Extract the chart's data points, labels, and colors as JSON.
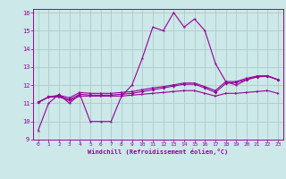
{
  "bg_color": "#cce8e8",
  "grid_color": "#aacccc",
  "line_color": "#990099",
  "xlim": [
    -0.5,
    23.5
  ],
  "ylim": [
    9,
    16.2
  ],
  "yticks": [
    9,
    10,
    11,
    12,
    13,
    14,
    15,
    16
  ],
  "xticks": [
    0,
    1,
    2,
    3,
    4,
    5,
    6,
    7,
    8,
    9,
    10,
    11,
    12,
    13,
    14,
    15,
    16,
    17,
    18,
    19,
    20,
    21,
    22,
    23
  ],
  "xlabel": "Windchill (Refroidissement éolien,°C)",
  "series1_x": [
    0,
    1,
    2,
    3,
    4,
    5,
    6,
    7,
    8,
    9,
    10,
    11,
    12,
    13,
    14,
    15,
    16,
    17,
    18,
    19,
    20,
    21,
    22,
    23
  ],
  "series1_y": [
    9.5,
    11.0,
    11.5,
    11.0,
    11.5,
    10.0,
    10.0,
    10.0,
    11.4,
    12.0,
    13.5,
    15.2,
    15.0,
    16.0,
    15.2,
    15.65,
    15.0,
    13.2,
    12.2,
    12.0,
    12.3,
    12.5,
    12.5,
    12.3
  ],
  "series2_x": [
    0,
    1,
    2,
    3,
    4,
    5,
    6,
    7,
    8,
    9,
    10,
    11,
    12,
    13,
    14,
    15,
    16,
    17,
    18,
    19,
    20,
    21,
    22,
    23
  ],
  "series2_y": [
    11.05,
    11.35,
    11.35,
    11.15,
    11.4,
    11.4,
    11.4,
    11.4,
    11.4,
    11.45,
    11.5,
    11.55,
    11.6,
    11.65,
    11.7,
    11.7,
    11.55,
    11.4,
    11.55,
    11.55,
    11.6,
    11.65,
    11.7,
    11.55
  ],
  "series3_x": [
    0,
    1,
    2,
    3,
    4,
    5,
    6,
    7,
    8,
    9,
    10,
    11,
    12,
    13,
    14,
    15,
    16,
    17,
    18,
    19,
    20,
    21,
    22,
    23
  ],
  "series3_y": [
    11.05,
    11.35,
    11.4,
    11.2,
    11.5,
    11.45,
    11.45,
    11.45,
    11.5,
    11.55,
    11.65,
    11.75,
    11.85,
    11.95,
    12.05,
    12.05,
    11.85,
    11.6,
    12.1,
    12.15,
    12.3,
    12.45,
    12.5,
    12.3
  ],
  "series4_x": [
    0,
    1,
    2,
    3,
    4,
    5,
    6,
    7,
    8,
    9,
    10,
    11,
    12,
    13,
    14,
    15,
    16,
    17,
    18,
    19,
    20,
    21,
    22,
    23
  ],
  "series4_y": [
    11.05,
    11.35,
    11.45,
    11.3,
    11.6,
    11.55,
    11.55,
    11.55,
    11.6,
    11.65,
    11.75,
    11.85,
    11.92,
    12.02,
    12.12,
    12.12,
    11.92,
    11.7,
    12.2,
    12.2,
    12.38,
    12.5,
    12.52,
    12.3
  ]
}
